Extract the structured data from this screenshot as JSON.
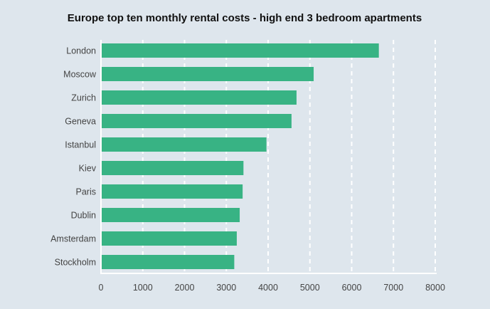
{
  "chart_data": {
    "type": "bar",
    "orientation": "horizontal",
    "title": "Europe top ten monthly rental costs - high end 3 bedroom apartments",
    "xlabel": "",
    "ylabel": "",
    "categories": [
      "London",
      "Moscow",
      "Zurich",
      "Geneva",
      "Istanbul",
      "Kiev",
      "Paris",
      "Dublin",
      "Amsterdam",
      "Stockholm"
    ],
    "values": [
      6650,
      5090,
      4680,
      4560,
      3960,
      3410,
      3390,
      3320,
      3250,
      3190
    ],
    "xlim": [
      0,
      8000
    ],
    "xticks": [
      0,
      1000,
      2000,
      3000,
      4000,
      5000,
      6000,
      7000,
      8000
    ],
    "grid": "vertical dashed",
    "legend": "none",
    "colors": {
      "bar": "#38b384",
      "background": "#dee6ed",
      "grid": "#ffffff"
    }
  }
}
